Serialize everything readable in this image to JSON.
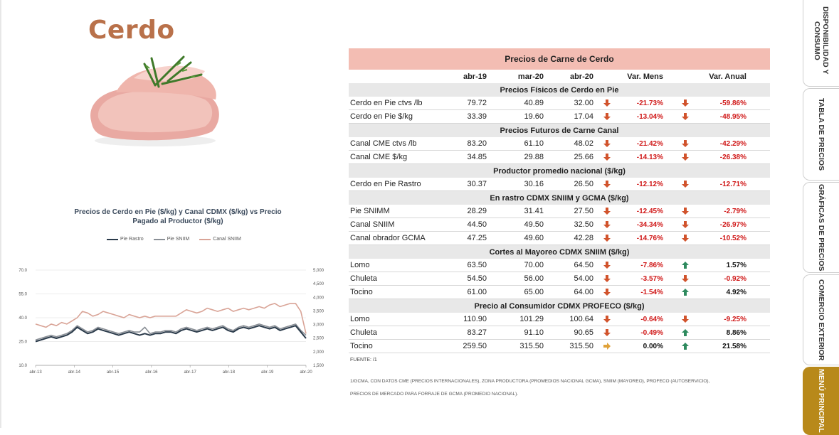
{
  "page_title": "Cerdo",
  "chart": {
    "title_line1": "Precios de Cerdo en Pie  ($/kg) y Canal CDMX ($/kg) vs Precio",
    "title_line2": "Pagado al Productor ($/kg)",
    "legend": [
      {
        "name": "Pie Rastro",
        "color": "#2a3a4a"
      },
      {
        "name": "Pie SNIIM",
        "color": "#8a8f96"
      },
      {
        "name": "Canal SNIIM",
        "color": "#d9a497"
      }
    ]
  },
  "chart_data": {
    "type": "line",
    "title": "Precios de Cerdo en Pie ($/kg) y Canal CDMX ($/kg) vs Precio Pagado al Productor ($/kg)",
    "x_ticks": [
      "abr-13",
      "abr-14",
      "abr-15",
      "abr-16",
      "abr-17",
      "abr-18",
      "abr-19",
      "abr-20"
    ],
    "y_left": {
      "ticks": [
        "70.0",
        "55.0",
        "40.0",
        "25.0",
        "10.0"
      ],
      "range": [
        10,
        70
      ]
    },
    "y_right": {
      "ticks": [
        "5,000",
        "4,500",
        "4,000",
        "3,500",
        "3,000",
        "2,500",
        "2,000",
        "1,500"
      ],
      "range": [
        1500,
        5000
      ]
    },
    "series": [
      {
        "name": "Canal SNIIM",
        "color": "#d9a497",
        "values": [
          36,
          35,
          34,
          36,
          35,
          37,
          36,
          38,
          40,
          44,
          43,
          41,
          42,
          44,
          43,
          42,
          41,
          40,
          42,
          41,
          40,
          41,
          40,
          41,
          41,
          41,
          41,
          41,
          43,
          45,
          44,
          43,
          44,
          46,
          45,
          44,
          45,
          46,
          44,
          45,
          46,
          45,
          46,
          47,
          46,
          48,
          49,
          47,
          48,
          49,
          49,
          44,
          30
        ]
      },
      {
        "name": "Pie SNIIM",
        "color": "#8a8f96",
        "values": [
          26,
          27,
          28,
          29,
          28,
          29,
          30,
          32,
          35,
          33,
          31,
          32,
          34,
          33,
          32,
          31,
          30,
          31,
          32,
          31,
          31,
          34,
          30,
          31,
          31,
          32,
          32,
          31,
          33,
          34,
          33,
          32,
          33,
          34,
          33,
          34,
          35,
          33,
          32,
          34,
          35,
          34,
          35,
          36,
          35,
          34,
          35,
          33,
          34,
          35,
          36,
          32,
          29
        ]
      },
      {
        "name": "Pie Rastro",
        "color": "#2a3a4a",
        "values": [
          25,
          26,
          27,
          28,
          27,
          28,
          29,
          31,
          34,
          32,
          30,
          31,
          33,
          32,
          31,
          30,
          29,
          30,
          31,
          30,
          29,
          30,
          29,
          30,
          30,
          31,
          31,
          30,
          32,
          33,
          32,
          31,
          32,
          33,
          32,
          33,
          34,
          32,
          31,
          33,
          34,
          33,
          34,
          35,
          34,
          33,
          34,
          32,
          33,
          34,
          35,
          31,
          27
        ]
      }
    ]
  },
  "table": {
    "title": "Precios de Carne de Cerdo",
    "columns": [
      "abr-19",
      "mar-20",
      "abr-20",
      "Var. Mens",
      "Var. Anual"
    ],
    "sections": [
      {
        "title": "Precios Físicos de Cerdo en Pie",
        "rows": [
          {
            "label": "Cerdo en Pie ctvs /lb",
            "a": "79.72",
            "b": "40.89",
            "c": "32.00",
            "ar1": "down",
            "vm": "-21.73%",
            "ar2": "down",
            "va": "-59.86%"
          },
          {
            "label": "Cerdo en Pie $/kg",
            "a": "33.39",
            "b": "19.60",
            "c": "17.04",
            "ar1": "down",
            "vm": "-13.04%",
            "ar2": "down",
            "va": "-48.95%"
          }
        ]
      },
      {
        "title": "Precios Futuros de Carne Canal",
        "rows": [
          {
            "label": "Canal CME ctvs /lb",
            "a": "83.20",
            "b": "61.10",
            "c": "48.02",
            "ar1": "down",
            "vm": "-21.42%",
            "ar2": "down",
            "va": "-42.29%"
          },
          {
            "label": "Canal CME $/kg",
            "a": "34.85",
            "b": "29.88",
            "c": "25.66",
            "ar1": "down",
            "vm": "-14.13%",
            "ar2": "down",
            "va": "-26.38%"
          }
        ]
      },
      {
        "title": "Productor promedio nacional ($/kg)",
        "rows": [
          {
            "label": "Cerdo en Pie Rastro",
            "a": "30.37",
            "b": "30.16",
            "c": "26.50",
            "ar1": "down",
            "vm": "-12.12%",
            "ar2": "down",
            "va": "-12.71%"
          }
        ]
      },
      {
        "title": "En rastro CDMX SNIIM y GCMA ($/kg)",
        "rows": [
          {
            "label": "Pie SNIMM",
            "a": "28.29",
            "b": "31.41",
            "c": "27.50",
            "ar1": "down",
            "vm": "-12.45%",
            "ar2": "down",
            "va": "-2.79%"
          },
          {
            "label": "Canal SNIIM",
            "a": "44.50",
            "b": "49.50",
            "c": "32.50",
            "ar1": "down",
            "vm": "-34.34%",
            "ar2": "down",
            "va": "-26.97%"
          },
          {
            "label": "Canal obrador GCMA",
            "a": "47.25",
            "b": "49.60",
            "c": "42.28",
            "ar1": "down",
            "vm": "-14.76%",
            "ar2": "down",
            "va": "-10.52%"
          }
        ]
      },
      {
        "title": "Cortes al Mayoreo CDMX SNIIM ($/kg)",
        "rows": [
          {
            "label": "Lomo",
            "a": "63.50",
            "b": "70.00",
            "c": "64.50",
            "ar1": "down",
            "vm": "-7.86%",
            "ar2": "up",
            "va": "1.57%"
          },
          {
            "label": "Chuleta",
            "a": "54.50",
            "b": "56.00",
            "c": "54.00",
            "ar1": "down",
            "vm": "-3.57%",
            "ar2": "down",
            "va": "-0.92%"
          },
          {
            "label": "Tocino",
            "a": "61.00",
            "b": "65.00",
            "c": "64.00",
            "ar1": "down",
            "vm": "-1.54%",
            "ar2": "up",
            "va": "4.92%"
          }
        ]
      },
      {
        "title": "Precio al Consumidor CDMX PROFECO ($/kg)",
        "rows": [
          {
            "label": "Lomo",
            "a": "110.90",
            "b": "101.29",
            "c": "100.64",
            "ar1": "down",
            "vm": "-0.64%",
            "ar2": "down",
            "va": "-9.25%"
          },
          {
            "label": "Chuleta",
            "a": "83.27",
            "b": "91.10",
            "c": "90.65",
            "ar1": "down",
            "vm": "-0.49%",
            "ar2": "up",
            "va": "8.86%"
          },
          {
            "label": "Tocino",
            "a": "259.50",
            "b": "315.50",
            "c": "315.50",
            "ar1": "right",
            "vm": "0.00%",
            "ar2": "up",
            "va": "21.58%"
          }
        ]
      }
    ],
    "fuente": "FUENTE: /1",
    "note_line1": "1/GCMA, CON DATOS CME (PRECIOS INTERNACIONALES), ZONA PRODUCTORA (PROMEDIOS NACIONAL GCMA), SNIIM (MAYOREO), PROFECO (AUTOSERVICIO),",
    "note_line2": "PRECIOS DE MERCADO PARA FORRAJE DE GCMA (PROMEDIO NACIONAL)."
  },
  "side_tabs": [
    {
      "label": "DISPONIBILIDAD Y CONSUMO",
      "active": false
    },
    {
      "label": "TABLA DE PRECIOS",
      "active": false
    },
    {
      "label": "GRÁFICAS DE PRECIOS",
      "active": false
    },
    {
      "label": "COMERCIO EXTERIOR",
      "active": false
    },
    {
      "label": "MENÚ PRINCIPAL",
      "active": true
    }
  ],
  "colors": {
    "up": "#2e8a5e",
    "down": "#d1532c",
    "flat": "#e0a23a",
    "neg_text": "#d01818"
  }
}
